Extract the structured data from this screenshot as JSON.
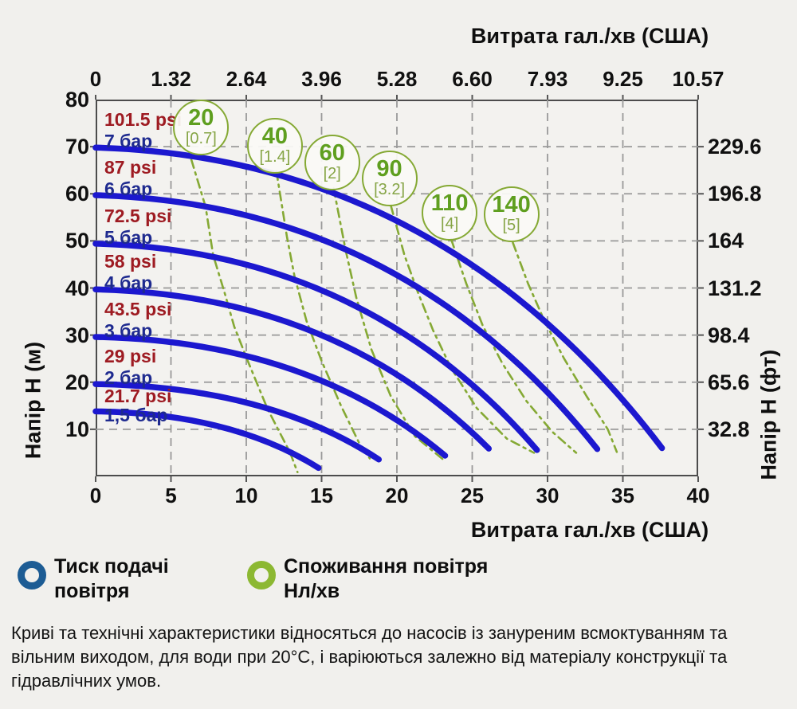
{
  "top_axis": {
    "title": "Витрата гал./хв (США)",
    "ticks": [
      "0",
      "1.32",
      "2.64",
      "3.96",
      "5.28",
      "6.60",
      "7.93",
      "9.25",
      "10.57"
    ]
  },
  "bottom_axis": {
    "title": "Витрата гал./хв (США)",
    "ticks": [
      "0",
      "5",
      "10",
      "15",
      "20",
      "25",
      "30",
      "35",
      "40"
    ]
  },
  "left_axis": {
    "title": "Напір H (м)",
    "ticks": [
      "80",
      "70",
      "60",
      "50",
      "40",
      "30",
      "20",
      "10"
    ],
    "tick_values": [
      80,
      70,
      60,
      50,
      40,
      30,
      20,
      10
    ]
  },
  "right_axis": {
    "title": "Напір H (фт)",
    "ticks": [
      "229.6",
      "196.8",
      "164",
      "131.2",
      "98.4",
      "65.6",
      "32.8"
    ],
    "tick_values": [
      70,
      60,
      50,
      40,
      30,
      20,
      10
    ]
  },
  "legend": {
    "items": [
      {
        "label": "Тиск подачі повітря",
        "color": "#1d5c94"
      },
      {
        "label": "Споживання повітря Нл/хв",
        "color": "#8cb832"
      }
    ]
  },
  "footer": "Криві та технічні характеристики відносяться до насосів із зануреним всмоктуванням та вільним виходом, для води при 20°C, і варіюються залежно від матеріалу конструкції та гідравлічних умов.",
  "chart_data": {
    "type": "line",
    "xlabel_top": "Витрата гал./хв (США)",
    "xlabel_bottom": "Витрата гал./хв (США)",
    "ylabel_left": "Напір H (м)",
    "ylabel_right": "Напір H (фт)",
    "x_range": [
      0,
      40
    ],
    "y_range": [
      0,
      80
    ],
    "x_gridlines": [
      5,
      10,
      15,
      20,
      25,
      30,
      35
    ],
    "y_gridlines": [
      10,
      20,
      30,
      40,
      50,
      60,
      70
    ],
    "grid": true,
    "pressure_curves": [
      {
        "psi": "101.5 psi",
        "bar": "7 бар",
        "start_head_m": 69.8,
        "end_flow_lmin": 37.6,
        "end_head_m": 6.0
      },
      {
        "psi": "87 psi",
        "bar": "6 бар",
        "start_head_m": 59.7,
        "end_flow_lmin": 33.3,
        "end_head_m": 5.8
      },
      {
        "psi": "72.5 psi",
        "bar": "5 бар",
        "start_head_m": 49.4,
        "end_flow_lmin": 29.3,
        "end_head_m": 5.6
      },
      {
        "psi": "58 psi",
        "bar": "4 бар",
        "start_head_m": 39.7,
        "end_flow_lmin": 26.1,
        "end_head_m": 5.9
      },
      {
        "psi": "43.5 psi",
        "bar": "3 бар",
        "start_head_m": 29.6,
        "end_flow_lmin": 23.2,
        "end_head_m": 4.4
      },
      {
        "psi": "29 psi",
        "bar": "2 бар",
        "start_head_m": 19.6,
        "end_flow_lmin": 18.8,
        "end_head_m": 3.6
      },
      {
        "psi": "21.7 psi",
        "bar": "1,5 бар",
        "start_head_m": 13.8,
        "end_flow_lmin": 14.8,
        "end_head_m": 1.8
      }
    ],
    "air_curves": [
      {
        "value": "20",
        "bracket": "[0.7]",
        "circle": {
          "flow": 7.0,
          "head": 74.1
        },
        "points": [
          [
            6.35,
            67.3
          ],
          [
            7.3,
            57.2
          ],
          [
            7.8,
            47.0
          ],
          [
            8.6,
            38.6
          ],
          [
            9.2,
            31.8
          ],
          [
            10.1,
            24.5
          ],
          [
            11.4,
            14.4
          ],
          [
            12.9,
            5.1
          ],
          [
            13.4,
            0.9
          ]
        ]
      },
      {
        "value": "40",
        "bracket": "[1.4]",
        "circle": {
          "flow": 11.9,
          "head": 70.2
        },
        "points": [
          [
            12.0,
            64.8
          ],
          [
            12.7,
            50.9
          ],
          [
            13.2,
            42.5
          ],
          [
            14.0,
            33.0
          ],
          [
            15.0,
            24.5
          ],
          [
            16.3,
            14.9
          ],
          [
            17.6,
            6.4
          ],
          [
            18.2,
            3.8
          ]
        ]
      },
      {
        "value": "60",
        "bracket": "[2]",
        "circle": {
          "flow": 15.7,
          "head": 66.6
        },
        "points": [
          [
            15.8,
            61.2
          ],
          [
            16.6,
            48.0
          ],
          [
            17.3,
            38.0
          ],
          [
            18.3,
            27.0
          ],
          [
            19.6,
            17.0
          ],
          [
            21.2,
            8.5
          ],
          [
            23.1,
            3.5
          ]
        ]
      },
      {
        "value": "90",
        "bracket": "[3.2]",
        "circle": {
          "flow": 19.5,
          "head": 63.3
        },
        "points": [
          [
            19.6,
            57.5
          ],
          [
            20.5,
            47.0
          ],
          [
            21.4,
            39.0
          ],
          [
            22.4,
            31.0
          ],
          [
            23.6,
            23.0
          ],
          [
            25.3,
            14.5
          ],
          [
            27.3,
            8.0
          ],
          [
            29.1,
            5.0
          ]
        ]
      },
      {
        "value": "110",
        "bracket": "[4]",
        "circle": {
          "flow": 23.5,
          "head": 56.0
        },
        "points": [
          [
            23.6,
            50.4
          ],
          [
            24.6,
            41.0
          ],
          [
            25.7,
            32.0
          ],
          [
            27.0,
            24.0
          ],
          [
            28.6,
            16.0
          ],
          [
            30.3,
            9.5
          ],
          [
            31.9,
            5.0
          ]
        ]
      },
      {
        "value": "140",
        "bracket": "[5]",
        "circle": {
          "flow": 27.6,
          "head": 55.7
        },
        "points": [
          [
            27.7,
            49.6
          ],
          [
            28.7,
            41.0
          ],
          [
            29.8,
            33.0
          ],
          [
            31.1,
            25.0
          ],
          [
            32.6,
            17.0
          ],
          [
            34.0,
            10.0
          ],
          [
            34.6,
            5.2
          ]
        ]
      }
    ],
    "colors": {
      "pressure_curve": "#1c18cf",
      "air_curve": "#85a934",
      "psi_text": "#9e1b22",
      "bar_text": "#1e2a8f",
      "grid": "#999999",
      "plot_border": "#4c4c4c",
      "background": "#f1f0ed"
    }
  }
}
